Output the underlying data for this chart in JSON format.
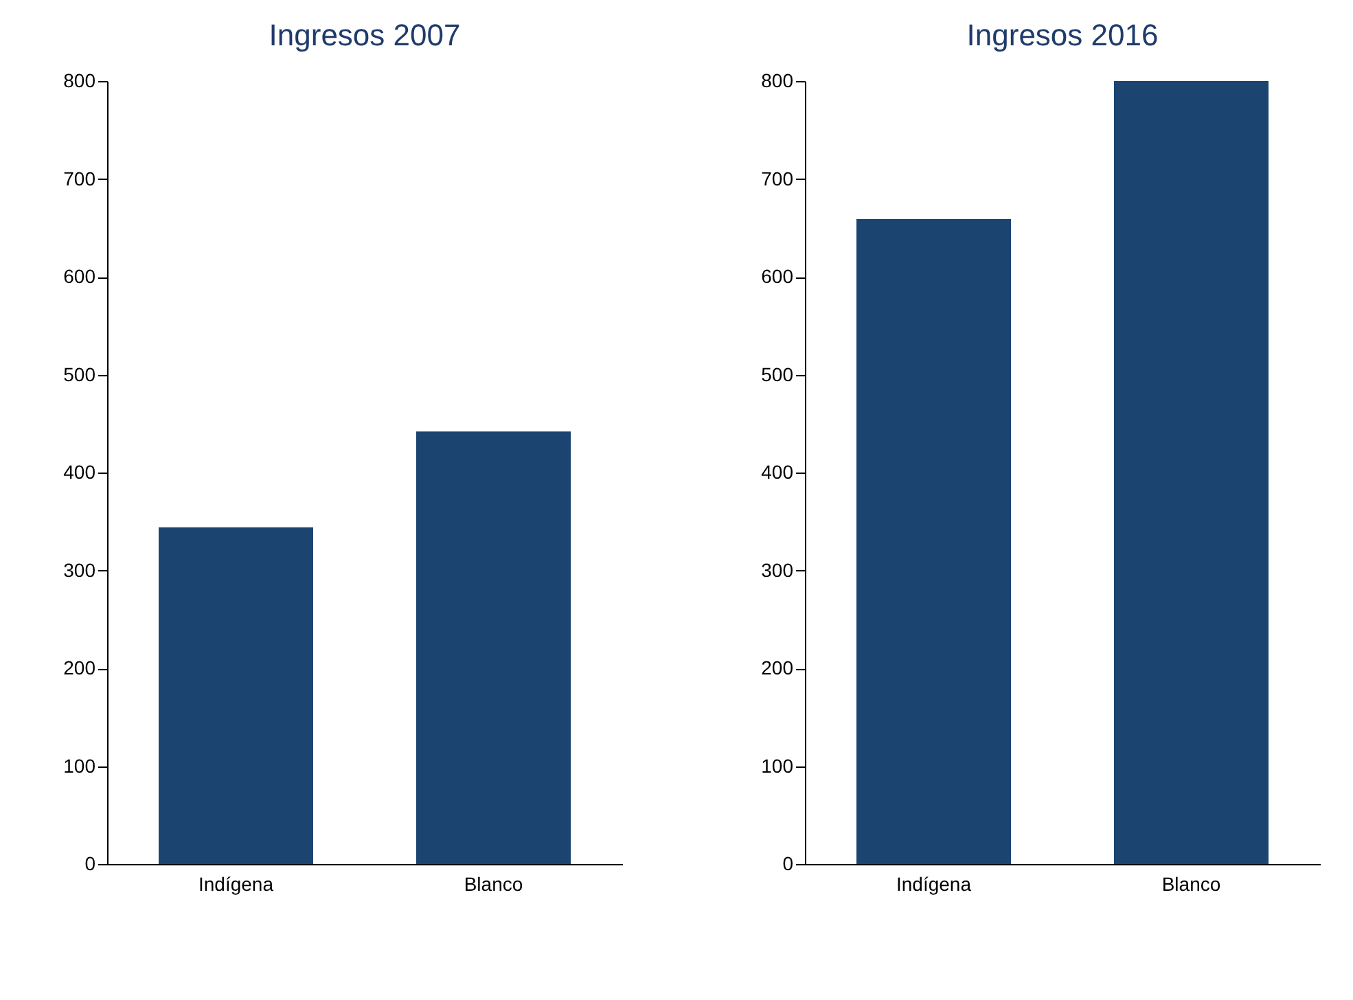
{
  "chart_data": [
    {
      "type": "bar",
      "title": "Ingresos 2007",
      "categories": [
        "Indígena",
        "Blanco"
      ],
      "values": [
        344,
        442
      ],
      "color": "#1b4470",
      "ylim": [
        0,
        800
      ],
      "yticks": [
        0,
        100,
        200,
        300,
        400,
        500,
        600,
        700,
        800
      ],
      "grid": false
    },
    {
      "type": "bar",
      "title": "Ingresos 2016",
      "categories": [
        "Indígena",
        "Blanco"
      ],
      "values": [
        659,
        800
      ],
      "color": "#1b4470",
      "ylim": [
        0,
        800
      ],
      "yticks": [
        0,
        100,
        200,
        300,
        400,
        500,
        600,
        700,
        800
      ],
      "grid": false
    }
  ]
}
